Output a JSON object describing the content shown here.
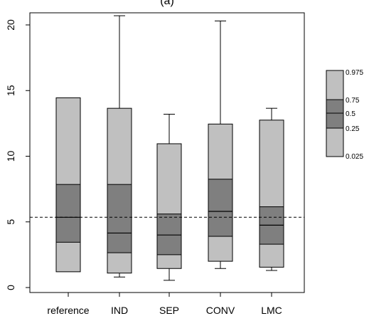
{
  "chart_data": {
    "type": "box",
    "title": "(a)",
    "xlabel": "",
    "ylabel": "",
    "ylim": [
      -0.5,
      21
    ],
    "yticks": [
      0,
      5,
      10,
      15,
      20
    ],
    "y_tick_labels": [
      "0",
      "5",
      "10",
      "15",
      "20"
    ],
    "reference_line": 5.35,
    "grid": false,
    "categories": [
      "reference",
      "IND",
      "SEP",
      "CONV",
      "LMC"
    ],
    "boxes": [
      {
        "label": "reference",
        "q025": 1.2,
        "q25": 3.45,
        "median": 5.35,
        "q75": 7.85,
        "q975": 14.45,
        "whisker_low": null,
        "whisker_high": null
      },
      {
        "label": "IND",
        "q025": 1.1,
        "q25": 2.65,
        "median": 4.15,
        "q75": 7.85,
        "q975": 13.65,
        "whisker_low": 0.8,
        "whisker_high": 20.7
      },
      {
        "label": "SEP",
        "q025": 1.45,
        "q25": 2.5,
        "median": 4.0,
        "q75": 5.6,
        "q975": 10.95,
        "whisker_low": 0.55,
        "whisker_high": 13.2
      },
      {
        "label": "CONV",
        "q025": 2.0,
        "q25": 3.9,
        "median": 5.8,
        "q75": 8.25,
        "q975": 12.45,
        "whisker_low": 1.45,
        "whisker_high": 20.3
      },
      {
        "label": "LMC",
        "q025": 1.55,
        "q25": 3.3,
        "median": 4.75,
        "q75": 6.15,
        "q975": 12.75,
        "whisker_low": 1.3,
        "whisker_high": 13.65
      }
    ],
    "legend": {
      "position": "right",
      "labels": [
        "0.975",
        "0.75",
        "0.5",
        "0.25",
        "0.025"
      ]
    },
    "colors": {
      "outer_band": "#c0c0c0",
      "inner_band": "#7f7f7f",
      "line": "#000000"
    }
  }
}
